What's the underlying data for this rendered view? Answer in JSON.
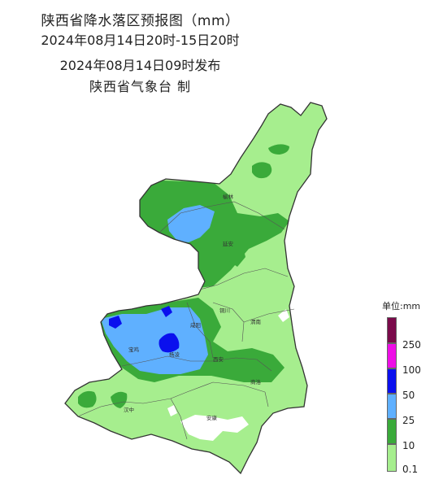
{
  "header": {
    "title": "陕西省降水落区预报图（mm）",
    "period": "2024年08月14日20时-15日20时",
    "issued": "2024年08月14日09时发布",
    "agency": "陕西省气象台  制"
  },
  "cities": [
    "榆林",
    "延安",
    "铜川",
    "渭南",
    "咸阳",
    "宝鸡",
    "杨凌",
    "西安",
    "商洛",
    "汉中",
    "安康"
  ],
  "legend": {
    "unit": "单位:mm",
    "classes": [
      {
        "label": "250",
        "color": "#7a0a4a"
      },
      {
        "label": "100",
        "color": "#ee0ee6"
      },
      {
        "label": "50",
        "color": "#0a10ee"
      },
      {
        "label": "25",
        "color": "#5fb0ff"
      },
      {
        "label": "10",
        "color": "#3aaa3a"
      },
      {
        "label": "0.1",
        "color": "#a6ee8e"
      }
    ]
  }
}
